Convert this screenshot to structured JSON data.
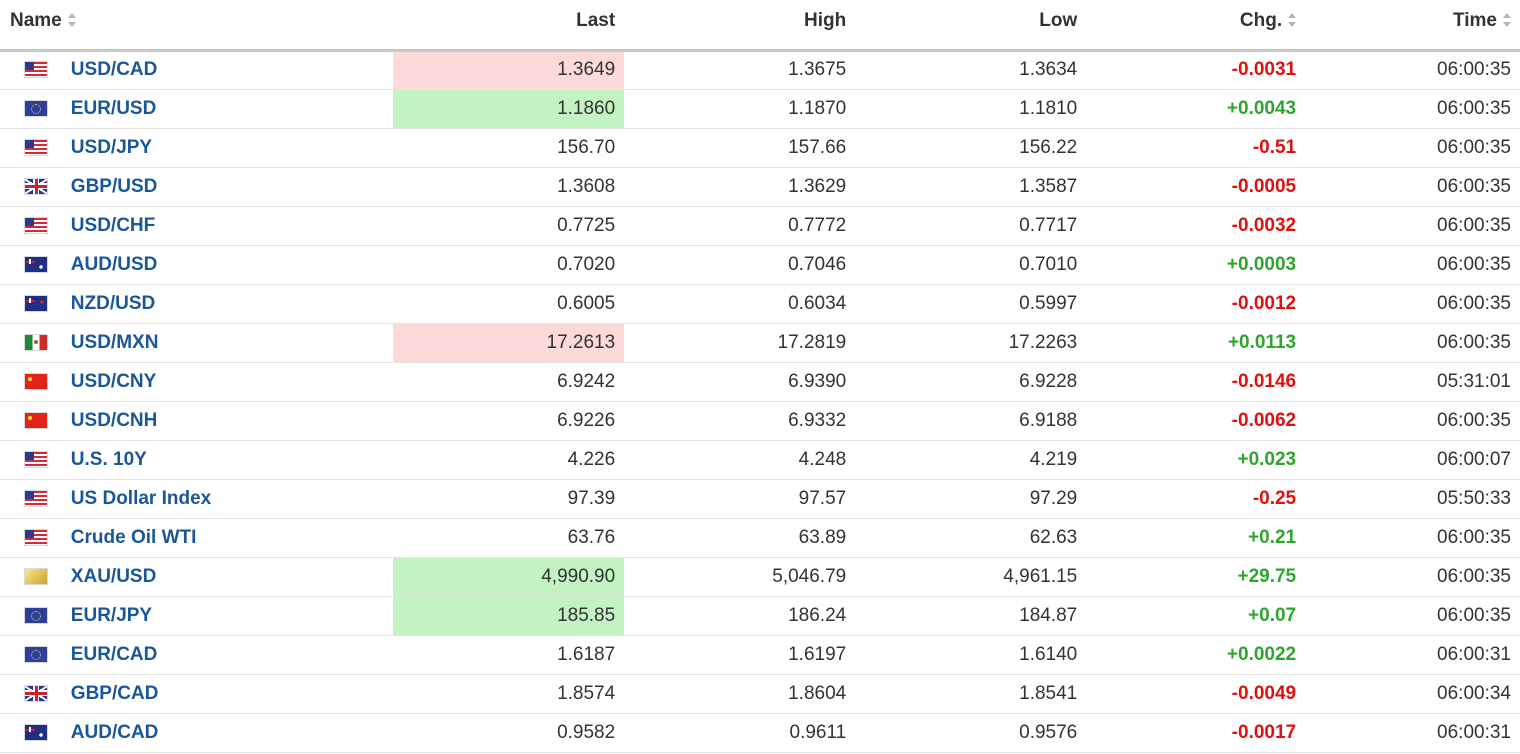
{
  "table": {
    "headers": {
      "name": "Name",
      "last": "Last",
      "high": "High",
      "low": "Low",
      "chg": "Chg.",
      "time": "Time"
    },
    "rows": [
      {
        "flag": "us-flag-icon",
        "name": "USD/CAD",
        "last": "1.3649",
        "high": "1.3675",
        "low": "1.3634",
        "chg": "-0.0031",
        "time": "06:00:35"
      },
      {
        "flag": "eu-flag-icon",
        "name": "EUR/USD",
        "last": "1.1860",
        "high": "1.1870",
        "low": "1.1810",
        "chg": "+0.0043",
        "time": "06:00:35"
      },
      {
        "flag": "us-flag-icon",
        "name": "USD/JPY",
        "last": "156.70",
        "high": "157.66",
        "low": "156.22",
        "chg": "-0.51",
        "time": "06:00:35"
      },
      {
        "flag": "gb-flag-icon",
        "name": "GBP/USD",
        "last": "1.3608",
        "high": "1.3629",
        "low": "1.3587",
        "chg": "-0.0005",
        "time": "06:00:35"
      },
      {
        "flag": "us-flag-icon",
        "name": "USD/CHF",
        "last": "0.7725",
        "high": "0.7772",
        "low": "0.7717",
        "chg": "-0.0032",
        "time": "06:00:35"
      },
      {
        "flag": "au-flag-icon",
        "name": "AUD/USD",
        "last": "0.7020",
        "high": "0.7046",
        "low": "0.7010",
        "chg": "+0.0003",
        "time": "06:00:35"
      },
      {
        "flag": "nz-flag-icon",
        "name": "NZD/USD",
        "last": "0.6005",
        "high": "0.6034",
        "low": "0.5997",
        "chg": "-0.0012",
        "time": "06:00:35"
      },
      {
        "flag": "mx-flag-icon",
        "name": "USD/MXN",
        "last": "17.2613",
        "high": "17.2819",
        "low": "17.2263",
        "chg": "+0.0113",
        "time": "06:00:35"
      },
      {
        "flag": "cn-flag-icon",
        "name": "USD/CNY",
        "last": "6.9242",
        "high": "6.9390",
        "low": "6.9228",
        "chg": "-0.0146",
        "time": "05:31:01"
      },
      {
        "flag": "cn-flag-icon",
        "name": "USD/CNH",
        "last": "6.9226",
        "high": "6.9332",
        "low": "6.9188",
        "chg": "-0.0062",
        "time": "06:00:35"
      },
      {
        "flag": "us-flag-icon",
        "name": "U.S. 10Y",
        "last": "4.226",
        "high": "4.248",
        "low": "4.219",
        "chg": "+0.023",
        "time": "06:00:07"
      },
      {
        "flag": "us-flag-icon",
        "name": "US Dollar Index",
        "last": "97.39",
        "high": "97.57",
        "low": "97.29",
        "chg": "-0.25",
        "time": "05:50:33"
      },
      {
        "flag": "us-flag-icon",
        "name": "Crude Oil WTI",
        "last": "63.76",
        "high": "63.89",
        "low": "62.63",
        "chg": "+0.21",
        "time": "06:00:35"
      },
      {
        "flag": "xau-gold-icon",
        "name": "XAU/USD",
        "last": "4,990.90",
        "high": "5,046.79",
        "low": "4,961.15",
        "chg": "+29.75",
        "time": "06:00:35"
      },
      {
        "flag": "eu-flag-icon",
        "name": "EUR/JPY",
        "last": "185.85",
        "high": "186.24",
        "low": "184.87",
        "chg": "+0.07",
        "time": "06:00:35"
      },
      {
        "flag": "eu-flag-icon",
        "name": "EUR/CAD",
        "last": "1.6187",
        "high": "1.6197",
        "low": "1.6140",
        "chg": "+0.0022",
        "time": "06:00:31"
      },
      {
        "flag": "gb-flag-icon",
        "name": "GBP/CAD",
        "last": "1.8574",
        "high": "1.8604",
        "low": "1.8541",
        "chg": "-0.0049",
        "time": "06:00:34"
      },
      {
        "flag": "au-flag-icon",
        "name": "AUD/CAD",
        "last": "0.9582",
        "high": "0.9611",
        "low": "0.9576",
        "chg": "-0.0017",
        "time": "06:00:31"
      }
    ]
  },
  "colors": {
    "name_link": "#1a5799",
    "positive": "#2ea52e",
    "negative": "#e01010",
    "flash_up_bg": "#c3f2c3",
    "flash_down_bg": "#fcdada"
  }
}
